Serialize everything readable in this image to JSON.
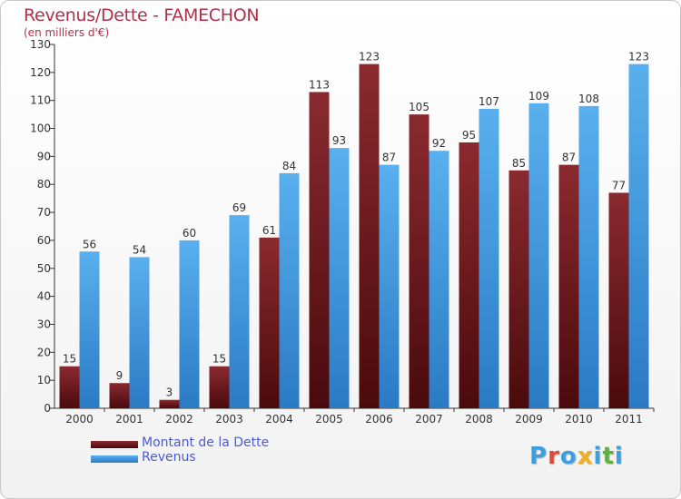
{
  "title": "Revenus/Dette - FAMECHON",
  "subtitle": "(en milliers d'€)",
  "colors": {
    "title": "#b0304a",
    "debt_top": "#8a2a30",
    "debt_bottom": "#4a0a0c",
    "revenue_top": "#5ab0ee",
    "revenue_bottom": "#2a7ac4",
    "legend_text": "#4a5ad8"
  },
  "legend": {
    "debt_label": "Montant de la Dette",
    "revenue_label": "Revenus"
  },
  "logo": {
    "letters": [
      "P",
      "r",
      "o",
      "x",
      "i",
      "t",
      "i"
    ],
    "colors": [
      "#3aa0e0",
      "#e04a3a",
      "#3aa0e0",
      "#f0b020",
      "#3aa0e0",
      "#60b040",
      "#3aa0e0"
    ]
  },
  "chart_data": {
    "type": "bar",
    "title": "Revenus/Dette - FAMECHON",
    "subtitle": "(en milliers d'€)",
    "categories": [
      "2000",
      "2001",
      "2002",
      "2003",
      "2004",
      "2005",
      "2006",
      "2007",
      "2008",
      "2009",
      "2010",
      "2011"
    ],
    "series": [
      {
        "name": "Montant de la Dette",
        "values": [
          15,
          9,
          3,
          15,
          61,
          113,
          123,
          105,
          95,
          85,
          87,
          77
        ]
      },
      {
        "name": "Revenus",
        "values": [
          56,
          54,
          60,
          69,
          84,
          93,
          87,
          92,
          107,
          109,
          108,
          123
        ]
      }
    ],
    "ylim": [
      0,
      130
    ],
    "yticks": [
      0,
      10,
      20,
      30,
      40,
      50,
      60,
      70,
      80,
      90,
      100,
      110,
      120,
      130
    ],
    "grid": false,
    "legend_position": "bottom-left"
  }
}
